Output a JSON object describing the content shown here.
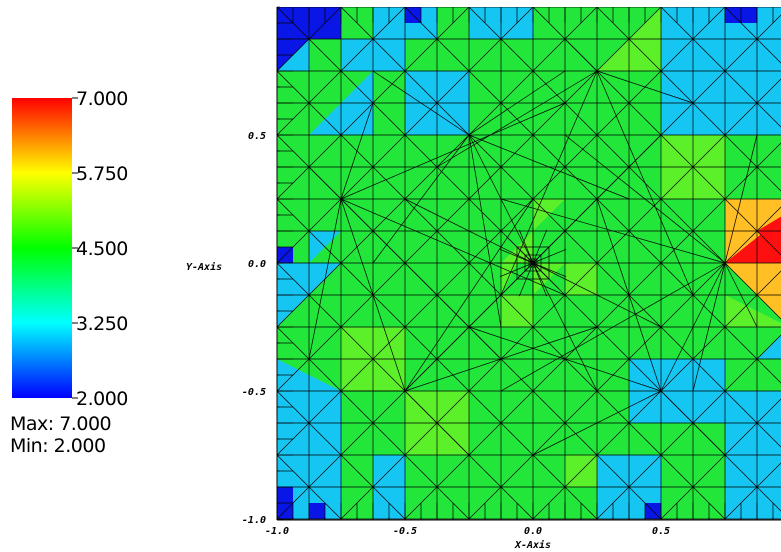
{
  "chart_data": {
    "type": "heatmap",
    "description_kind": "pseudocolor plot on triangular adaptive mesh",
    "xlabel": "X-Axis",
    "ylabel": "Y-Axis",
    "xlim": [
      -1.0,
      1.0
    ],
    "ylim": [
      -1.0,
      1.0
    ],
    "x_ticks": [
      "-1.0",
      "-0.5",
      "0.0",
      "0.5"
    ],
    "y_ticks": [
      "-1.0",
      "-0.5",
      "0.0",
      "0.5"
    ],
    "x_tick_values": [
      -1.0,
      -0.5,
      0.0,
      0.5
    ],
    "y_tick_values": [
      -1.0,
      -0.5,
      0.0,
      0.5
    ],
    "colorbar": {
      "labels": [
        "7.000",
        "5.750",
        "4.500",
        "3.250",
        "2.000"
      ],
      "min": 2.0,
      "max": 7.0,
      "max_text": "Max: 7.000",
      "min_text": "Min: 2.000",
      "colors": [
        "#ff0000",
        "#ffff00",
        "#00ff00",
        "#00ffff",
        "#0000ff"
      ]
    },
    "dominant_value": 4.5,
    "regions": [
      {
        "value": 3.5,
        "x": [
          -1.0,
          -0.75
        ],
        "y": [
          -1.0,
          -0.5
        ]
      },
      {
        "value": 3.5,
        "x": [
          -0.5,
          -0.25
        ],
        "y": [
          0.5,
          0.75
        ]
      },
      {
        "value": 3.5,
        "x": [
          0.75,
          1.0
        ],
        "y": [
          -0.75,
          -0.5
        ]
      },
      {
        "value": 5.0,
        "x": [
          -0.75,
          -0.5
        ],
        "y": [
          -0.5,
          -0.25
        ]
      },
      {
        "value": 5.0,
        "x": [
          -0.5,
          -0.25
        ],
        "y": [
          -0.75,
          -0.5
        ]
      },
      {
        "value": 5.0,
        "x": [
          0.5,
          0.75
        ],
        "y": [
          0.25,
          0.5
        ]
      },
      {
        "value": 6.0,
        "x": [
          0.75,
          1.0
        ],
        "y": [
          -0.25,
          0.25
        ]
      },
      {
        "value": 7.0,
        "x": [
          0.75,
          1.0
        ],
        "y": [
          0.0,
          0.25
        ]
      },
      {
        "value": 2.0,
        "x": [
          -1.0,
          -0.75
        ],
        "y": [
          0.75,
          1.0
        ]
      },
      {
        "value": 2.0,
        "x": [
          -1.0,
          -0.75
        ],
        "y": [
          -1.0,
          -0.75
        ]
      }
    ],
    "colors": {
      "green": "#22e63a",
      "light_green": "#5cf02b",
      "cyan": "#16c6f2",
      "blue": "#0a16e6",
      "orange": "#ffbf25",
      "red": "#ff1010"
    }
  }
}
